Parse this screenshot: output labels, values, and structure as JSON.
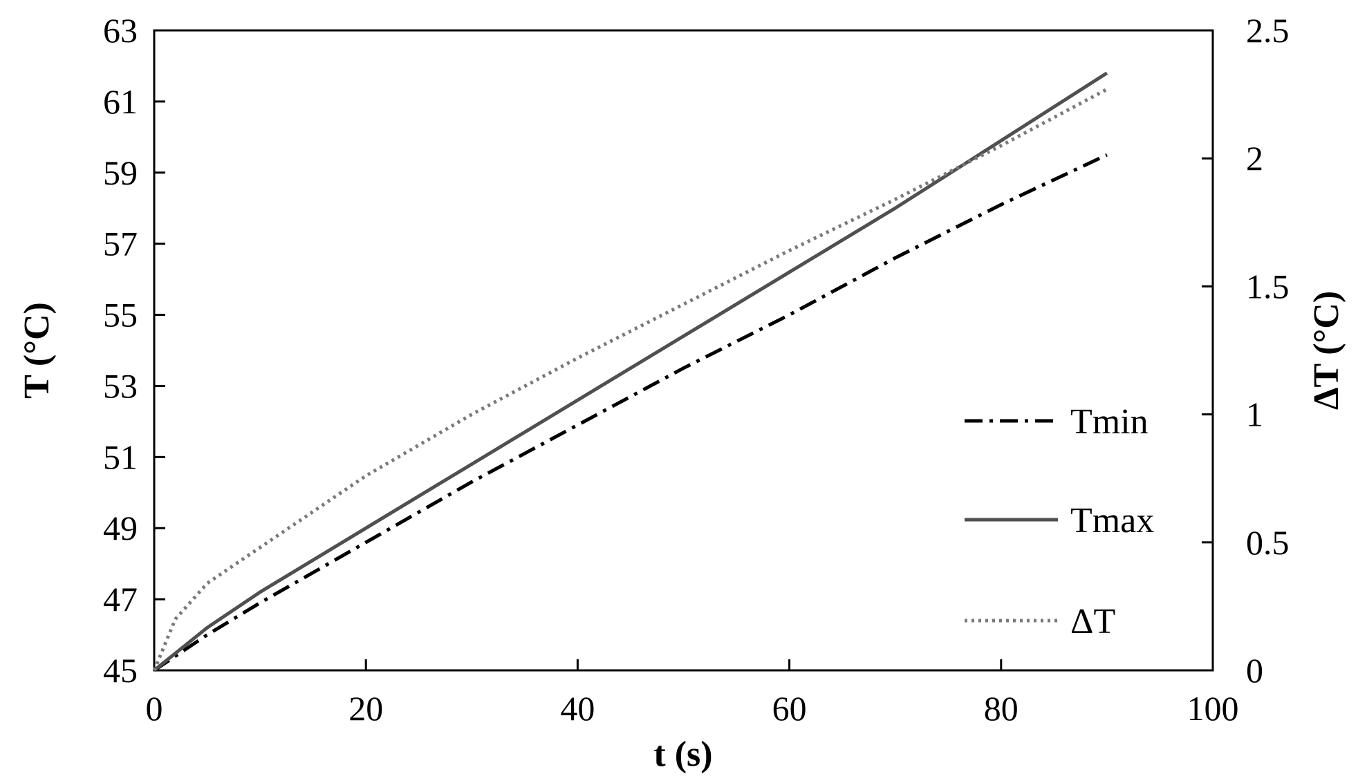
{
  "chart_data": {
    "type": "line",
    "title": "",
    "xlabel": "t (s)",
    "ylabel": "T (°C)",
    "y2label": "ΔT (°C)",
    "xlim": [
      0,
      100
    ],
    "ylim": [
      45,
      63
    ],
    "y2lim": [
      0,
      2.5
    ],
    "xticks": [
      "0",
      "20",
      "40",
      "60",
      "80",
      "100"
    ],
    "yticks": [
      "45",
      "47",
      "49",
      "51",
      "53",
      "55",
      "57",
      "59",
      "61",
      "63"
    ],
    "y2ticks": [
      "0",
      "0.5",
      "1",
      "1.5",
      "2",
      "2.5"
    ],
    "grid": false,
    "legend_position": "center-right",
    "series": [
      {
        "name": "Tmin",
        "axis": "left",
        "style": "dashdot",
        "color": "#000000",
        "x": [
          0,
          5,
          10,
          20,
          30,
          40,
          50,
          60,
          70,
          80,
          90
        ],
        "y": [
          45.0,
          46.0,
          46.9,
          48.6,
          50.3,
          51.9,
          53.5,
          55.0,
          56.6,
          58.1,
          59.5
        ]
      },
      {
        "name": "Tmax",
        "axis": "left",
        "style": "solid",
        "color": "#505050",
        "x": [
          0,
          5,
          10,
          20,
          30,
          40,
          50,
          60,
          70,
          80,
          90
        ],
        "y": [
          45.0,
          46.2,
          47.2,
          49.0,
          50.8,
          52.6,
          54.4,
          56.2,
          58.0,
          59.9,
          61.8
        ]
      },
      {
        "name": "ΔT",
        "axis": "right",
        "style": "dotted",
        "color": "#7a7a7a",
        "x": [
          0,
          2,
          5,
          10,
          20,
          30,
          40,
          50,
          60,
          70,
          80,
          90
        ],
        "y": [
          0.0,
          0.2,
          0.34,
          0.48,
          0.76,
          1.0,
          1.22,
          1.43,
          1.64,
          1.84,
          2.05,
          2.27
        ]
      }
    ]
  }
}
